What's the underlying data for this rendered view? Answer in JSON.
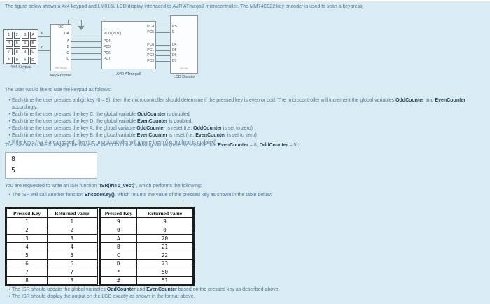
{
  "intro": "The figure below shows a 4x4 keypad and LM016L LCD display interfaced to AVR ATmega8 microcontroller. The MM74C922 key encoder is used to scan a keypress.",
  "figure": {
    "keypad": {
      "label": "4X4 Keypad",
      "keys": [
        "1",
        "2",
        "3",
        "A",
        "4",
        "5",
        "6",
        "B",
        "7",
        "8",
        "9",
        "C",
        "*",
        "0",
        "#",
        "D"
      ],
      "wire_x_label": "X",
      "wire_y_label": "Y"
    },
    "encoder": {
      "label": "Key Encoder",
      "chip": "MM74C922",
      "pin_top": "OE",
      "pins_right": [
        "DA",
        "A",
        "B",
        "C",
        "D"
      ]
    },
    "mcu": {
      "label": "AVR ATmega8",
      "pins_left": [
        "PD0 (INT0)",
        "PD4",
        "PD5",
        "PD6",
        "PD7"
      ],
      "pins_right": [
        "PC4",
        "PC5",
        "PC0",
        "PC1",
        "PC2",
        "PC3"
      ]
    },
    "lcd": {
      "label": "LCD Display",
      "chip": "LM016L",
      "pins_left": [
        "RS",
        "E",
        "D4",
        "D5",
        "D6",
        "D7"
      ]
    }
  },
  "usage": {
    "heading": "The user would like to use the keypad as follows:",
    "bullets": [
      [
        "Each time the user presses a digit key (0 – 9), then the microcontroller should determine if the pressed key is even or odd. The microcontroller will increment the global variables ",
        {
          "b": "OddCounter"
        },
        " and ",
        {
          "b": "EvenCounter"
        },
        " accordingly."
      ],
      [
        "Each time the user presses the key C, the global variable ",
        {
          "b": "OddCounter"
        },
        " is doubled."
      ],
      [
        "Each time the user presses the key D, the global variable ",
        {
          "b": "EvenCounter"
        },
        " is doubled."
      ],
      [
        "Each time the user presses the key A, the global variable ",
        {
          "b": "OddCounter"
        },
        " is reset (i.e. ",
        {
          "b": "OddCounter"
        },
        " is set to zero)"
      ],
      [
        "Each time the user presses the key B, the global variable ",
        {
          "b": "EvenCounter"
        },
        " is reset (i.e. ",
        {
          "b": "EvenCounter"
        },
        " is set to zero)"
      ],
      [
        "If the keys * or # are pressed, then the microcontroller will ignore them (i.e. nothing is updated)."
      ]
    ]
  },
  "display": {
    "heading_rich": [
      "The user would like to display the values on the LCD in the following format (here we assume that ",
      {
        "b": "EvenCounter"
      },
      " = 8, ",
      {
        "b": "OddCounter"
      },
      " = 5):"
    ],
    "lcd_lines": [
      "8",
      "5"
    ]
  },
  "task": {
    "heading_rich": [
      "You are requested to write an ISR function \"",
      {
        "b": "ISR(INT0_vect)"
      },
      "\", which performs the following:"
    ],
    "bullets": [
      [
        "The ISR will call another function ",
        {
          "b": "EncodeKey()"
        },
        ", which returns the value of the pressed key as shown in the table below:"
      ]
    ]
  },
  "table": {
    "headers": [
      "Pressed Key",
      "Returned value"
    ],
    "left_rows": [
      [
        "1",
        "1"
      ],
      [
        "2",
        "2"
      ],
      [
        "3",
        "3"
      ],
      [
        "4",
        "4"
      ],
      [
        "5",
        "5"
      ],
      [
        "6",
        "6"
      ],
      [
        "7",
        "7"
      ],
      [
        "8",
        "8"
      ]
    ],
    "right_rows": [
      [
        "9",
        "9"
      ],
      [
        "0",
        "0"
      ],
      [
        "A",
        "20"
      ],
      [
        "B",
        "21"
      ],
      [
        "C",
        "22"
      ],
      [
        "D",
        "23"
      ],
      [
        "*",
        "50"
      ],
      [
        "#",
        "51"
      ]
    ]
  },
  "footer": {
    "bullets": [
      [
        "The ISR should update the global variables ",
        {
          "b": "OddCounter"
        },
        " and ",
        {
          "b": "EvenCounter"
        },
        " based on the pressed key as described above."
      ],
      [
        "The ISR should display the output on the LCD exactly as shown in the format above."
      ]
    ]
  }
}
